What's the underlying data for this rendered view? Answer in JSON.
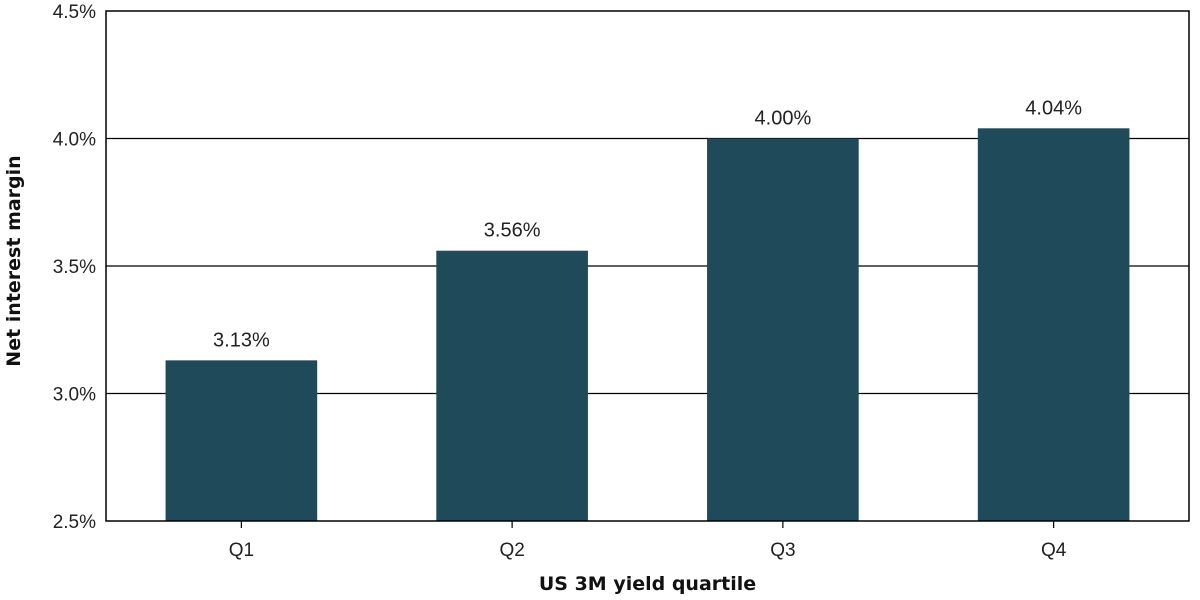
{
  "chart_data": {
    "type": "bar",
    "categories": [
      "Q1",
      "Q2",
      "Q3",
      "Q4"
    ],
    "values": [
      3.13,
      3.56,
      4.0,
      4.04
    ],
    "data_labels": [
      "3.13%",
      "3.56%",
      "4.00%",
      "4.04%"
    ],
    "xlabel": "US 3M yield quartile",
    "ylabel": "Net interest margin",
    "ylim": [
      2.5,
      4.5
    ],
    "yticks": [
      2.5,
      3.0,
      3.5,
      4.0,
      4.5
    ],
    "ytick_labels": [
      "2.5%",
      "3.0%",
      "3.5%",
      "4.0%",
      "4.5%"
    ],
    "grid": true,
    "legend": "none",
    "colors": {
      "bar": "#1e4a5a",
      "grid": "#000000",
      "axis": "#000000"
    }
  }
}
